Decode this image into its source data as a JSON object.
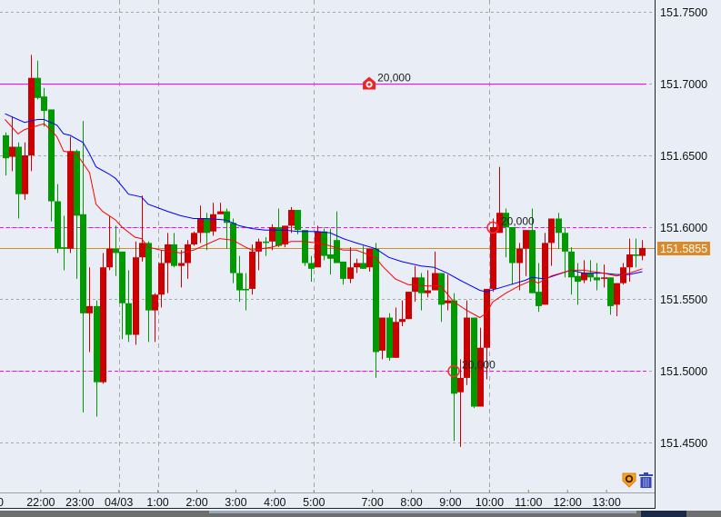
{
  "chart_data": {
    "type": "candlestick",
    "timeframe_minutes": 10,
    "ylim": [
      151.435,
      151.765
    ],
    "y_ticks": [
      "151.7500",
      "151.7000",
      "151.6500",
      "151.6000",
      "151.5500",
      "151.5000",
      "151.4500"
    ],
    "x_ticks": [
      {
        "label": "22:00",
        "time": "22:00"
      },
      {
        "label": "23:00",
        "time": "23:00"
      },
      {
        "label": "04/03",
        "time": "00:00"
      },
      {
        "label": "1:00",
        "time": "01:00"
      },
      {
        "label": "2:00",
        "time": "02:00"
      },
      {
        "label": "3:00",
        "time": "03:00"
      },
      {
        "label": "4:00",
        "time": "04:00"
      },
      {
        "label": "5:00",
        "time": "05:00"
      },
      {
        "label": "7:00",
        "time": "07:00"
      },
      {
        "label": "8:00",
        "time": "08:00"
      },
      {
        "label": "9:00",
        "time": "09:00"
      },
      {
        "label": "10:00",
        "time": "10:00"
      },
      {
        "label": "11:00",
        "time": "11:00"
      },
      {
        "label": "12:00",
        "time": "12:00"
      },
      {
        "label": "13:00",
        "time": "13:00"
      }
    ],
    "x_tick_partial_left": "0",
    "grid": true,
    "vgrid_times": [
      "00:00",
      "01:00",
      "05:00",
      "10:00"
    ],
    "colors": {
      "background": "#e9edf5",
      "up": "#cc0000",
      "down": "#009900",
      "ma_fast": "#ff0000",
      "ma_slow": "#0000ff",
      "level": "#ff00ff",
      "current_price": "#d98a2b",
      "grid": "#a8a8a8"
    },
    "candles_fields": [
      "time",
      "open",
      "high",
      "low",
      "close"
    ],
    "candles": [
      [
        "21:00",
        151.664,
        151.666,
        151.636,
        151.648
      ],
      [
        "21:10",
        151.649,
        151.677,
        151.639,
        151.656
      ],
      [
        "21:20",
        151.656,
        151.659,
        151.606,
        151.623
      ],
      [
        "21:30",
        151.623,
        151.659,
        151.619,
        151.65
      ],
      [
        "21:40",
        151.65,
        151.72,
        151.639,
        151.704
      ],
      [
        "21:50",
        151.704,
        151.716,
        151.689,
        151.69
      ],
      [
        "22:00",
        151.691,
        151.697,
        151.67,
        151.681
      ],
      [
        "22:10",
        151.682,
        151.682,
        151.604,
        151.618
      ],
      [
        "22:20",
        151.618,
        151.63,
        151.582,
        151.585
      ],
      [
        "22:30",
        151.586,
        151.608,
        151.57,
        151.585
      ],
      [
        "22:40",
        151.585,
        151.663,
        151.582,
        151.653
      ],
      [
        "22:50",
        151.653,
        151.654,
        151.564,
        151.608
      ],
      [
        "23:00",
        151.609,
        151.674,
        151.471,
        151.54
      ],
      [
        "23:10",
        151.54,
        151.572,
        151.513,
        151.545
      ],
      [
        "23:20",
        151.545,
        151.549,
        151.468,
        151.492
      ],
      [
        "23:30",
        151.492,
        151.582,
        151.491,
        151.572
      ],
      [
        "23:40",
        151.572,
        151.608,
        151.57,
        151.585
      ],
      [
        "23:50",
        151.585,
        151.601,
        151.566,
        151.582
      ],
      [
        "00:00",
        151.583,
        151.583,
        151.522,
        151.547
      ],
      [
        "00:10",
        151.547,
        151.57,
        151.52,
        151.525
      ],
      [
        "00:20",
        151.525,
        151.59,
        151.518,
        151.579
      ],
      [
        "00:30",
        151.579,
        151.622,
        151.576,
        151.589
      ],
      [
        "00:40",
        151.589,
        151.59,
        151.52,
        151.542
      ],
      [
        "00:50",
        151.542,
        151.554,
        151.52,
        151.553
      ],
      [
        "01:00",
        151.553,
        151.584,
        151.544,
        151.575
      ],
      [
        "01:10",
        151.575,
        151.596,
        151.554,
        151.588
      ],
      [
        "01:20",
        151.588,
        151.596,
        151.572,
        151.573
      ],
      [
        "01:30",
        151.573,
        151.584,
        151.558,
        151.575
      ],
      [
        "01:40",
        151.575,
        151.591,
        151.564,
        151.588
      ],
      [
        "01:50",
        151.588,
        151.597,
        151.587,
        151.596
      ],
      [
        "02:00",
        151.596,
        151.615,
        151.589,
        151.606
      ],
      [
        "02:10",
        151.606,
        151.61,
        151.584,
        151.596
      ],
      [
        "02:20",
        151.597,
        151.617,
        151.594,
        151.609
      ],
      [
        "02:30",
        151.609,
        151.617,
        151.609,
        151.611
      ],
      [
        "02:40",
        151.611,
        151.613,
        151.585,
        151.603
      ],
      [
        "02:50",
        151.603,
        151.606,
        151.561,
        151.568
      ],
      [
        "03:00",
        151.568,
        151.58,
        151.548,
        151.556
      ],
      [
        "03:10",
        151.557,
        151.568,
        151.542,
        151.556
      ],
      [
        "03:20",
        151.557,
        151.588,
        151.553,
        151.583
      ],
      [
        "03:30",
        151.583,
        151.592,
        151.57,
        151.59
      ],
      [
        "03:40",
        151.59,
        151.593,
        151.58,
        151.589
      ],
      [
        "03:50",
        151.59,
        151.602,
        151.584,
        151.6
      ],
      [
        "04:00",
        151.6,
        151.613,
        151.586,
        151.587
      ],
      [
        "04:10",
        151.588,
        151.601,
        151.586,
        151.601
      ],
      [
        "04:20",
        151.601,
        151.614,
        151.596,
        151.612
      ],
      [
        "04:30",
        151.612,
        151.612,
        151.595,
        151.598
      ],
      [
        "04:40",
        151.598,
        151.598,
        151.573,
        151.575
      ],
      [
        "04:50",
        151.575,
        151.58,
        151.562,
        151.571
      ],
      [
        "05:00",
        151.572,
        151.601,
        151.572,
        151.597
      ],
      [
        "05:10",
        151.597,
        151.599,
        151.577,
        151.58
      ],
      [
        "05:20",
        151.581,
        151.599,
        151.567,
        151.578
      ],
      [
        "05:30",
        151.591,
        151.611,
        151.575,
        151.575
      ],
      [
        "05:40",
        151.576,
        151.576,
        151.56,
        151.564
      ],
      [
        "05:50",
        151.564,
        151.586,
        151.561,
        151.572
      ],
      [
        "06:30",
        151.572,
        151.578,
        151.568,
        151.575
      ],
      [
        "06:40",
        151.575,
        151.587,
        151.571,
        151.571
      ],
      [
        "06:50",
        151.572,
        151.585,
        151.569,
        151.585
      ],
      [
        "07:00",
        151.585,
        151.589,
        151.495,
        151.513
      ],
      [
        "07:10",
        151.514,
        151.537,
        151.508,
        151.537
      ],
      [
        "07:20",
        151.537,
        151.54,
        151.507,
        151.509
      ],
      [
        "07:30",
        151.509,
        151.544,
        151.509,
        151.534
      ],
      [
        "07:40",
        151.534,
        151.549,
        151.531,
        151.536
      ],
      [
        "07:50",
        151.536,
        151.555,
        151.536,
        151.555
      ],
      [
        "08:00",
        151.555,
        151.573,
        151.548,
        151.565
      ],
      [
        "08:10",
        151.565,
        151.568,
        151.542,
        151.554
      ],
      [
        "08:20",
        151.554,
        151.57,
        151.551,
        151.556
      ],
      [
        "08:30",
        151.556,
        151.583,
        151.556,
        151.568
      ],
      [
        "08:40",
        151.568,
        151.568,
        151.534,
        151.546
      ],
      [
        "08:50",
        151.547,
        151.567,
        151.542,
        151.549
      ],
      [
        "09:00",
        151.549,
        151.554,
        151.451,
        151.484
      ],
      [
        "09:10",
        151.485,
        151.508,
        151.447,
        151.495
      ],
      [
        "09:20",
        151.495,
        151.549,
        151.49,
        151.537
      ],
      [
        "09:30",
        151.537,
        151.537,
        151.474,
        151.475
      ],
      [
        "09:40",
        151.475,
        151.53,
        151.475,
        151.516
      ],
      [
        "09:50",
        151.516,
        151.557,
        151.494,
        151.557
      ],
      [
        "10:00",
        151.557,
        151.606,
        151.555,
        151.6
      ],
      [
        "10:10",
        151.596,
        151.642,
        151.596,
        151.61
      ],
      [
        "10:20",
        151.61,
        151.613,
        151.579,
        151.6
      ],
      [
        "10:30",
        151.6,
        151.6,
        151.56,
        151.575
      ],
      [
        "10:40",
        151.575,
        151.589,
        151.556,
        151.585
      ],
      [
        "10:50",
        151.585,
        151.598,
        151.566,
        151.598
      ],
      [
        "11:00",
        151.598,
        151.613,
        151.554,
        151.554
      ],
      [
        "11:10",
        151.555,
        151.575,
        151.541,
        151.545
      ],
      [
        "11:20",
        151.546,
        151.596,
        151.546,
        151.589
      ],
      [
        "11:30",
        151.589,
        151.606,
        151.573,
        151.606
      ],
      [
        "11:40",
        151.606,
        151.61,
        151.585,
        151.596
      ],
      [
        "11:50",
        151.596,
        151.6,
        151.565,
        151.583
      ],
      [
        "12:00",
        151.583,
        151.586,
        151.553,
        151.565
      ],
      [
        "12:10",
        151.566,
        151.575,
        151.546,
        151.562
      ],
      [
        "12:20",
        151.563,
        151.577,
        151.561,
        151.568
      ],
      [
        "12:30",
        151.568,
        151.577,
        151.562,
        151.565
      ],
      [
        "12:40",
        151.565,
        151.575,
        151.556,
        151.563
      ],
      [
        "12:50",
        151.564,
        151.574,
        151.558,
        151.565
      ],
      [
        "13:00",
        151.565,
        151.565,
        151.539,
        151.545
      ],
      [
        "13:10",
        151.546,
        151.561,
        151.538,
        151.561
      ],
      [
        "13:20",
        151.561,
        151.575,
        151.56,
        151.572
      ],
      [
        "13:30",
        151.572,
        151.592,
        151.562,
        151.581
      ],
      [
        "13:40",
        151.581,
        151.592,
        151.572,
        151.58
      ],
      [
        "13:50",
        151.58,
        151.591,
        151.577,
        151.5855
      ]
    ],
    "ma_slow": [
      [
        "21:00",
        151.679
      ],
      [
        "21:30",
        151.673
      ],
      [
        "21:50",
        151.675
      ],
      [
        "22:00",
        151.675
      ],
      [
        "22:20",
        151.671
      ],
      [
        "22:30",
        151.665
      ],
      [
        "22:40",
        151.664
      ],
      [
        "23:00",
        151.659
      ],
      [
        "23:10",
        151.651
      ],
      [
        "23:20",
        151.642
      ],
      [
        "23:40",
        151.637
      ],
      [
        "23:50",
        151.634
      ],
      [
        "00:10",
        151.623
      ],
      [
        "00:30",
        151.621
      ],
      [
        "00:40",
        151.616
      ],
      [
        "01:10",
        151.611
      ],
      [
        "01:30",
        151.608
      ],
      [
        "01:50",
        151.606
      ],
      [
        "02:10",
        151.606
      ],
      [
        "02:40",
        151.605
      ],
      [
        "03:00",
        151.601
      ],
      [
        "03:20",
        151.599
      ],
      [
        "03:40",
        151.598
      ],
      [
        "04:10",
        151.598
      ],
      [
        "04:30",
        151.597
      ],
      [
        "05:00",
        151.597
      ],
      [
        "05:20",
        151.596
      ],
      [
        "05:40",
        151.592
      ],
      [
        "06:30",
        151.589
      ],
      [
        "07:00",
        151.585
      ],
      [
        "07:20",
        151.579
      ],
      [
        "07:40",
        151.576
      ],
      [
        "08:10",
        151.573
      ],
      [
        "08:30",
        151.572
      ],
      [
        "08:50",
        151.568
      ],
      [
        "09:10",
        151.563
      ],
      [
        "09:40",
        151.556
      ],
      [
        "09:50",
        151.555
      ],
      [
        "10:20",
        151.559
      ],
      [
        "10:50",
        151.563
      ],
      [
        "11:00",
        151.565
      ],
      [
        "11:20",
        151.564
      ],
      [
        "12:00",
        151.57
      ],
      [
        "12:20",
        151.568
      ],
      [
        "12:50",
        151.568
      ],
      [
        "13:10",
        151.567
      ],
      [
        "13:30",
        151.567
      ],
      [
        "13:50",
        151.569
      ]
    ],
    "ma_fast": [
      [
        "21:00",
        151.675
      ],
      [
        "21:20",
        151.665
      ],
      [
        "21:30",
        151.668
      ],
      [
        "22:00",
        151.672
      ],
      [
        "22:10",
        151.668
      ],
      [
        "22:20",
        151.663
      ],
      [
        "22:30",
        151.653
      ],
      [
        "22:50",
        151.651
      ],
      [
        "23:10",
        151.638
      ],
      [
        "23:20",
        151.616
      ],
      [
        "23:30",
        151.611
      ],
      [
        "23:50",
        151.605
      ],
      [
        "00:00",
        151.6
      ],
      [
        "00:20",
        151.593
      ],
      [
        "00:30",
        151.592
      ],
      [
        "00:40",
        151.586
      ],
      [
        "01:00",
        151.584
      ],
      [
        "01:30",
        151.582
      ],
      [
        "01:50",
        151.584
      ],
      [
        "02:10",
        151.588
      ],
      [
        "02:30",
        151.592
      ],
      [
        "02:50",
        151.591
      ],
      [
        "03:10",
        151.586
      ],
      [
        "03:20",
        151.584
      ],
      [
        "03:50",
        151.586
      ],
      [
        "04:20",
        151.59
      ],
      [
        "04:40",
        151.59
      ],
      [
        "05:00",
        151.589
      ],
      [
        "05:20",
        151.587
      ],
      [
        "05:40",
        151.584
      ],
      [
        "06:30",
        151.584
      ],
      [
        "07:00",
        151.579
      ],
      [
        "07:10",
        151.573
      ],
      [
        "07:30",
        151.564
      ],
      [
        "07:50",
        151.56
      ],
      [
        "08:20",
        151.559
      ],
      [
        "08:40",
        151.559
      ],
      [
        "09:00",
        151.548
      ],
      [
        "09:20",
        151.542
      ],
      [
        "09:40",
        151.537
      ],
      [
        "09:50",
        151.54
      ],
      [
        "10:00",
        151.548
      ],
      [
        "10:20",
        151.554
      ],
      [
        "10:40",
        151.559
      ],
      [
        "11:00",
        151.563
      ],
      [
        "11:10",
        151.561
      ],
      [
        "11:30",
        151.566
      ],
      [
        "12:00",
        151.57
      ],
      [
        "12:20",
        151.57
      ],
      [
        "12:50",
        151.568
      ],
      [
        "13:10",
        151.566
      ],
      [
        "13:30",
        151.568
      ],
      [
        "13:50",
        151.571
      ]
    ],
    "levels": [
      {
        "price": 151.7,
        "style": "solid",
        "label": "20,000",
        "marker": "alert-icon",
        "marker_time": "06:50"
      },
      {
        "price": 151.6,
        "style": "dashed",
        "label": "20,000",
        "marker": "circle",
        "marker_time": "10:00"
      },
      {
        "price": 151.5,
        "style": "dashed",
        "label": "20,000",
        "marker": "circle",
        "marker_time": "09:00"
      }
    ],
    "current_price": {
      "value": 151.5855,
      "label": "151.5855"
    }
  },
  "toolbar_icons": {
    "order": "order-icon",
    "delete": "trash-icon"
  }
}
